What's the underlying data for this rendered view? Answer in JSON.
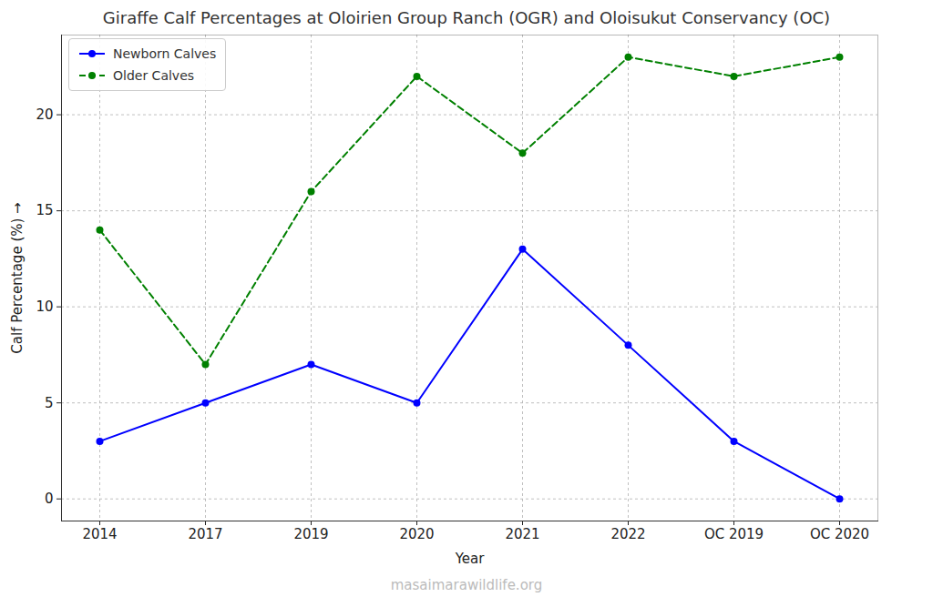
{
  "chart_data": {
    "type": "line",
    "title": "Giraffe Calf Percentages at Oloirien Group Ranch (OGR) and Oloisukut Conservancy (OC)",
    "x_label": "Year",
    "y_label": "Calf Percentage (%)",
    "annotations": [
      "masaimarawildlife.org"
    ],
    "categories": [
      "2014",
      "2017",
      "2019",
      "2020",
      "2021",
      "2022",
      "OC 2019",
      "OC 2020"
    ],
    "series": [
      {
        "name": "Newborn Calves",
        "color": "#0000ff",
        "marker": "circle",
        "line_style": "solid",
        "values": [
          3,
          5,
          7,
          5,
          13,
          8,
          3,
          0
        ]
      },
      {
        "name": "Older Calves",
        "color": "#008000",
        "marker": "circle",
        "line_style": "dashed",
        "values": [
          14,
          7,
          16,
          22,
          18,
          23,
          22,
          23
        ]
      }
    ],
    "ylim": [
      -1.15,
      24.15
    ],
    "yticks": [
      0,
      5,
      10,
      15,
      20
    ],
    "grid": true,
    "legend": "upper left"
  }
}
